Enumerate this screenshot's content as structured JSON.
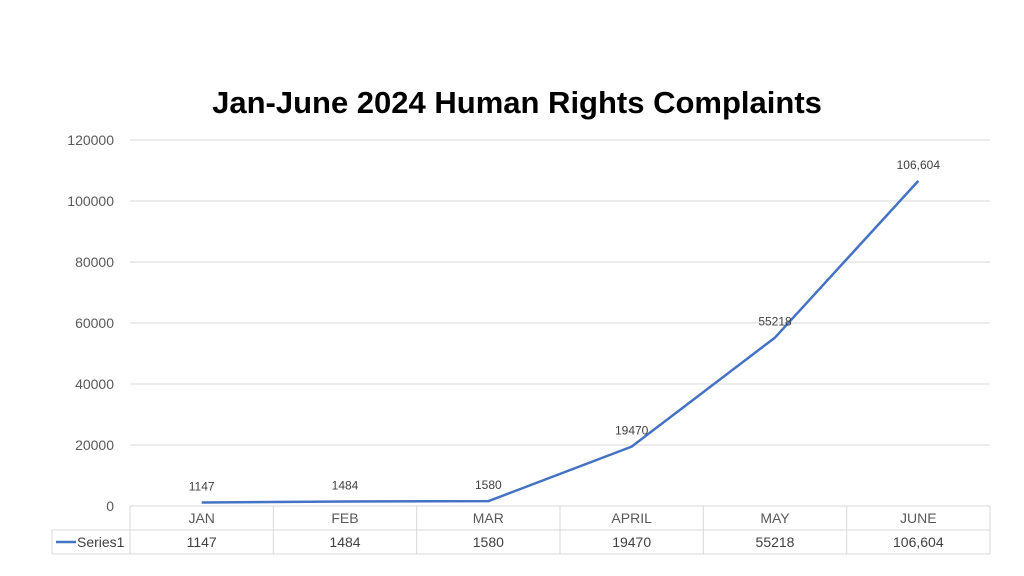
{
  "chart_data": {
    "type": "line",
    "title": "Jan-June 2024 Human Rights Complaints",
    "xlabel": "",
    "ylabel": "",
    "categories": [
      "JAN",
      "FEB",
      "MAR",
      "APRIL",
      "MAY",
      "JUNE"
    ],
    "series": [
      {
        "name": "Series1",
        "values": [
          1147,
          1484,
          1580,
          19470,
          55218,
          106604
        ],
        "labels": [
          "1147",
          "1484",
          "1580",
          "19470",
          "55218",
          "106,604"
        ],
        "color": "#4472C4"
      }
    ],
    "ylim": [
      0,
      120000
    ],
    "yticks": [
      "0",
      "20000",
      "40000",
      "60000",
      "80000",
      "100000",
      "120000"
    ],
    "grid": true,
    "legend": "data-table-below"
  }
}
